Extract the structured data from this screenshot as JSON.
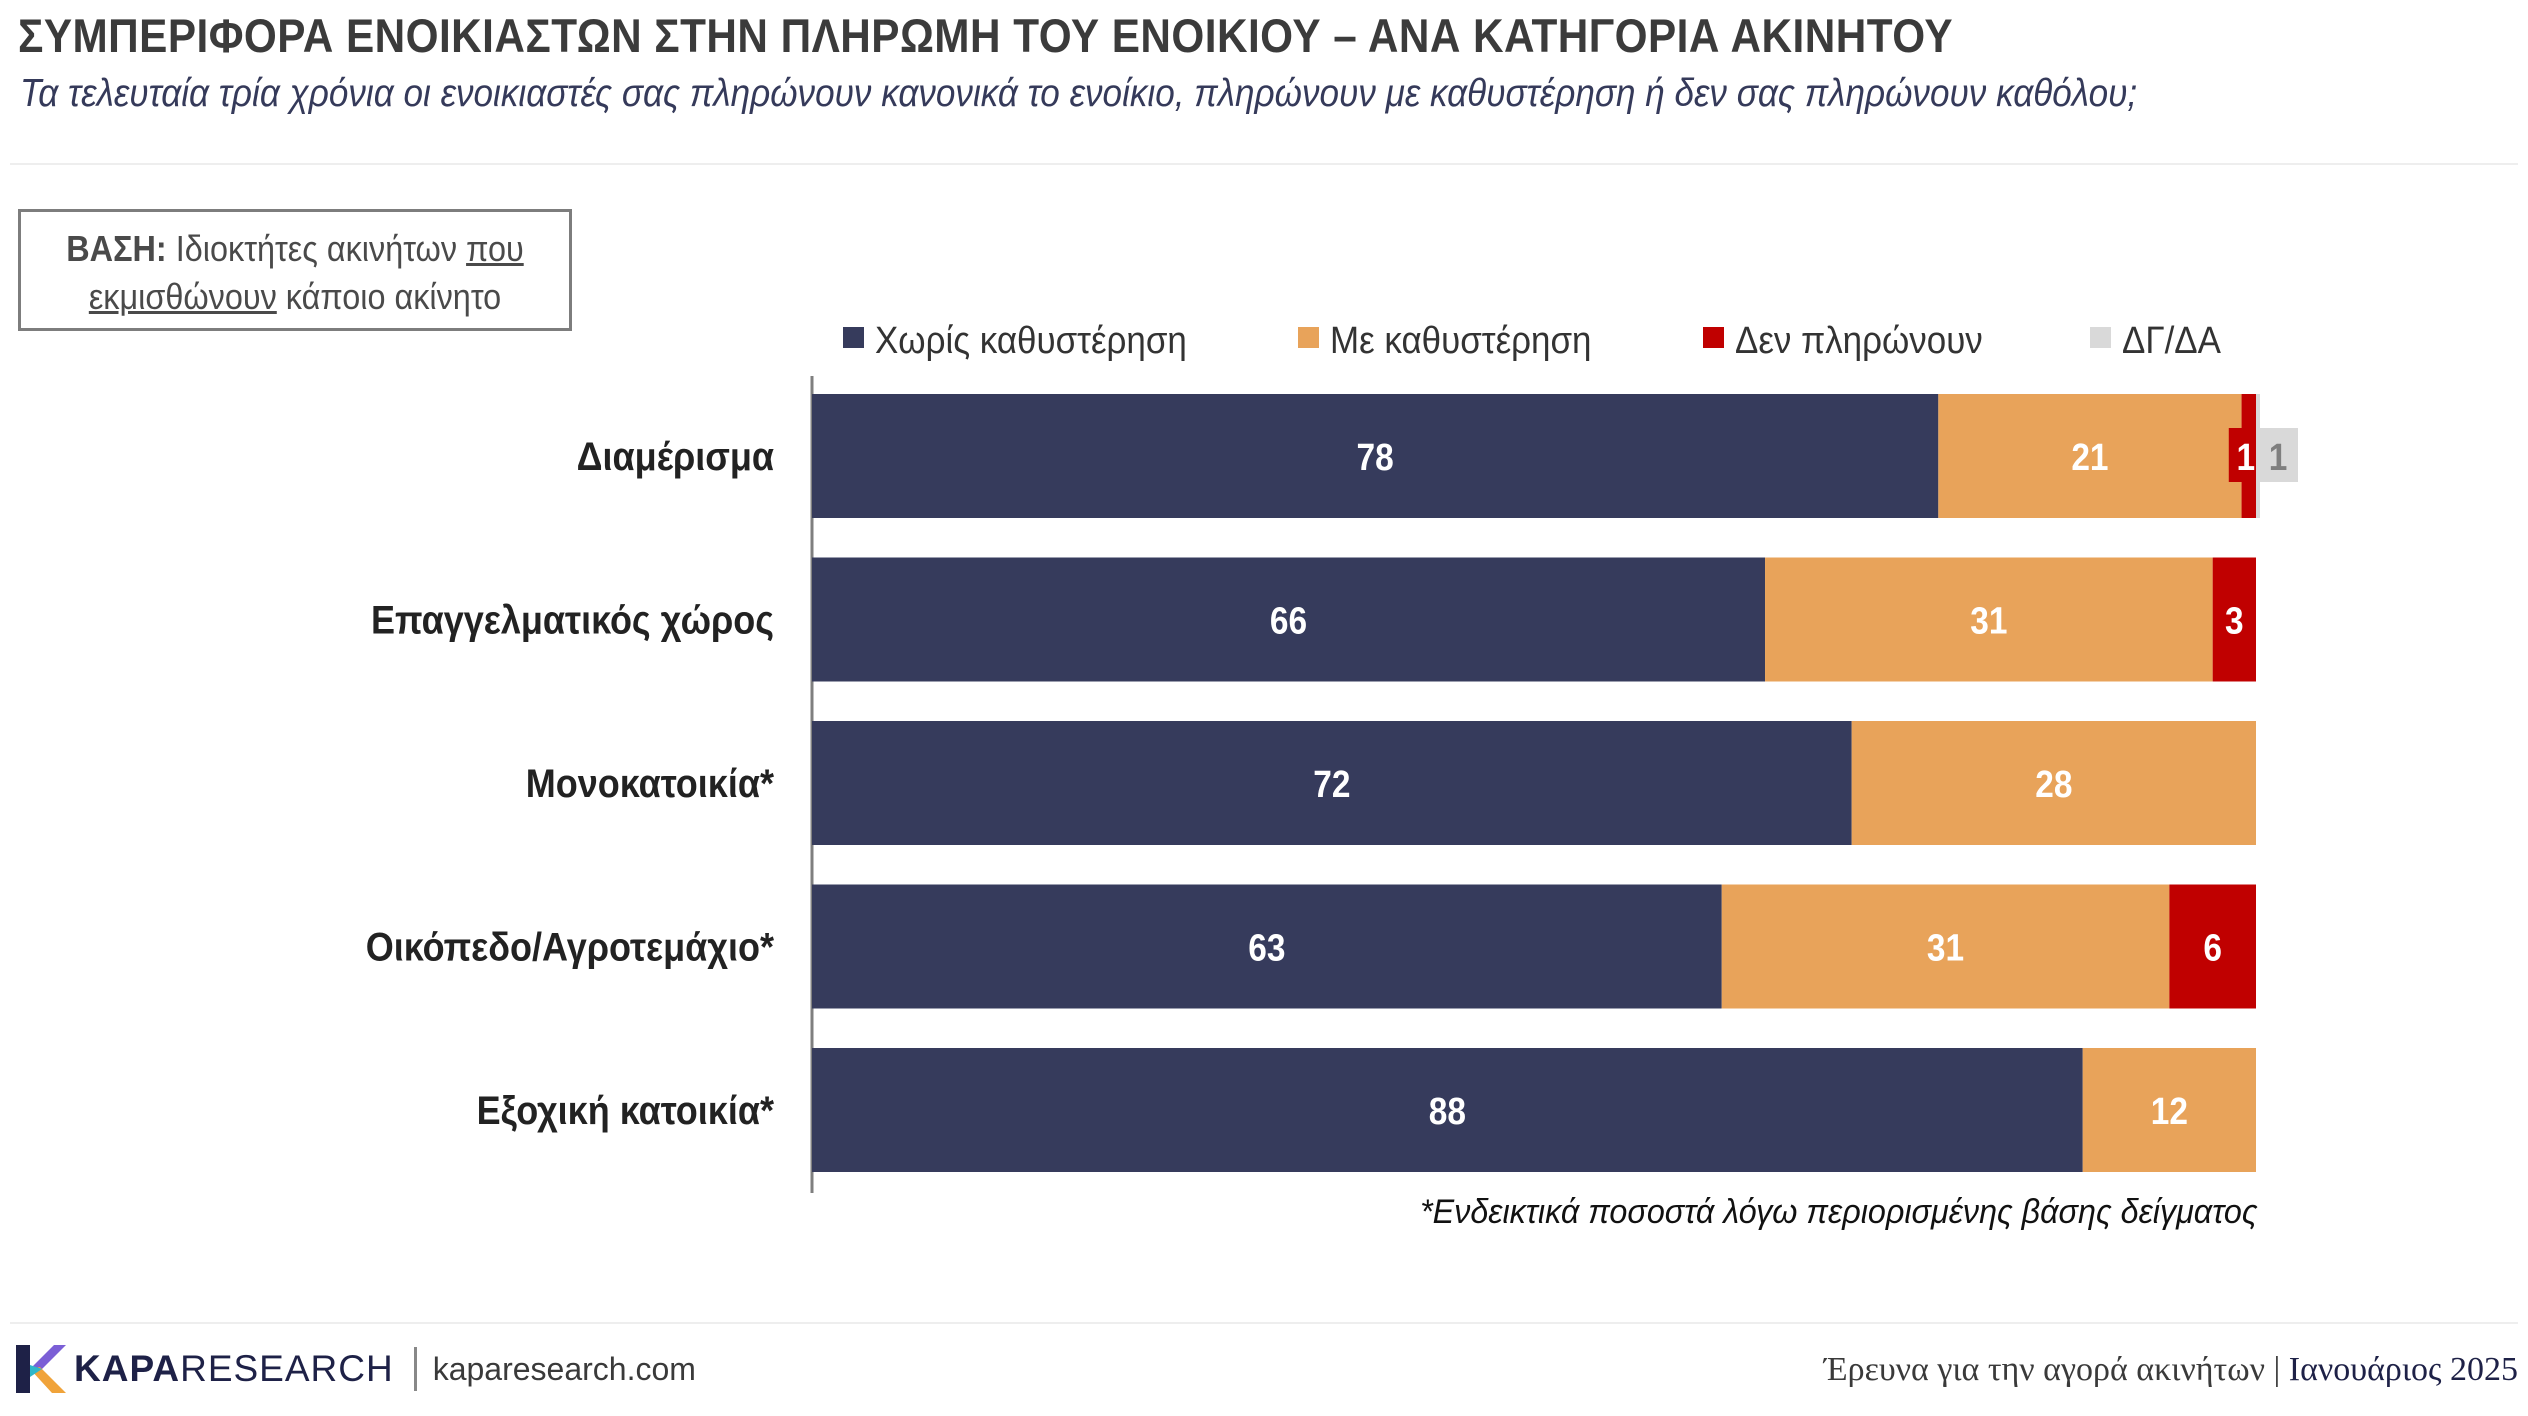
{
  "title": "ΣΥΜΠΕΡΙΦΟΡΑ ΕΝΟΙΚΙΑΣΤΩΝ ΣΤΗΝ ΠΛΗΡΩΜΗ ΤΟΥ ΕΝΟΙΚΙΟΥ – ΑΝΑ ΚΑΤΗΓΟΡΙΑ ΑΚΙΝΗΤΟΥ",
  "subtitle": "Τα τελευταία τρία χρόνια οι ενοικιαστές σας πληρώνουν κανονικά το ενοίκιο, πληρώνουν με καθυστέρηση ή δεν σας πληρώνουν καθόλου;",
  "base": {
    "label": "ΒΑΣΗ:",
    "text_1": "Ιδιοκτήτες ακινήτων",
    "text_2": "που",
    "text_3": "εκμισθώνουν",
    "text_4": "κάποιο ακίνητο"
  },
  "footnote": "*Ενδεικτικά ποσοστά λόγω περιορισμένης βάσης δείγματος",
  "footer": {
    "brand_bold": "KAPA",
    "brand_rest": "RESEARCH",
    "site": "kaparesearch.com",
    "study": "Έρευνα για την αγορά ακινήτων",
    "divider": "|",
    "date": "Ιανουάριος 2025"
  },
  "colors": {
    "no_delay": "#363b5c",
    "delay": "#e8a35a",
    "no_pay": "#c00000",
    "dk_na": "#d9d9d9"
  },
  "chart_data": {
    "type": "bar",
    "orientation": "horizontal",
    "stacked": true,
    "legend_position": "top",
    "xlim": [
      0,
      100
    ],
    "categories": [
      "Διαμέρισμα",
      "Επαγγελματικός χώρος",
      "Μονοκατοικία*",
      "Οικόπεδο/Αγροτεμάχιο*",
      "Εξοχική κατοικία*"
    ],
    "series": [
      {
        "name": "Χωρίς καθυστέρηση",
        "color": "#363b5c",
        "values": [
          78,
          66,
          72,
          63,
          88
        ]
      },
      {
        "name": "Με καθυστέρηση",
        "color": "#e8a35a",
        "values": [
          21,
          31,
          28,
          31,
          12
        ]
      },
      {
        "name": "Δεν πληρώνουν",
        "color": "#c00000",
        "values": [
          1,
          3,
          0,
          6,
          0
        ]
      },
      {
        "name": "ΔΓ/ΔΑ",
        "color": "#d9d9d9",
        "values": [
          1,
          0,
          0,
          0,
          0
        ]
      }
    ]
  }
}
